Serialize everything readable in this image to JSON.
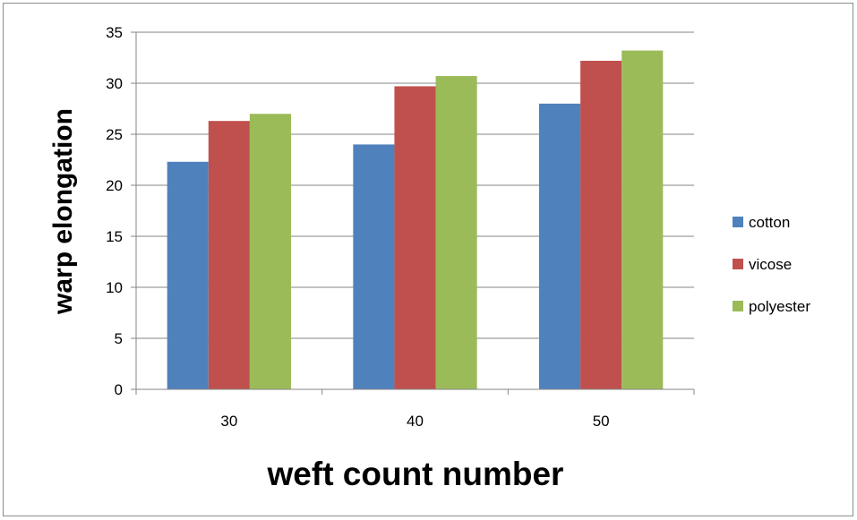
{
  "chart_data": {
    "type": "bar",
    "categories": [
      "30",
      "40",
      "50"
    ],
    "series": [
      {
        "name": "cotton",
        "values": [
          22.3,
          24.0,
          28.0
        ]
      },
      {
        "name": "vicose",
        "values": [
          26.3,
          29.7,
          32.2
        ]
      },
      {
        "name": "polyester",
        "values": [
          27.0,
          30.7,
          33.2
        ]
      }
    ],
    "xlabel": "weft count number",
    "ylabel": "warp elongation",
    "ylim": [
      0,
      35
    ],
    "yticks": [
      "0",
      "5",
      "10",
      "15",
      "20",
      "25",
      "30",
      "35"
    ],
    "grid": true,
    "legend_position": "right",
    "colors": [
      "#4f81bd",
      "#c0504d",
      "#9bbb59"
    ]
  }
}
